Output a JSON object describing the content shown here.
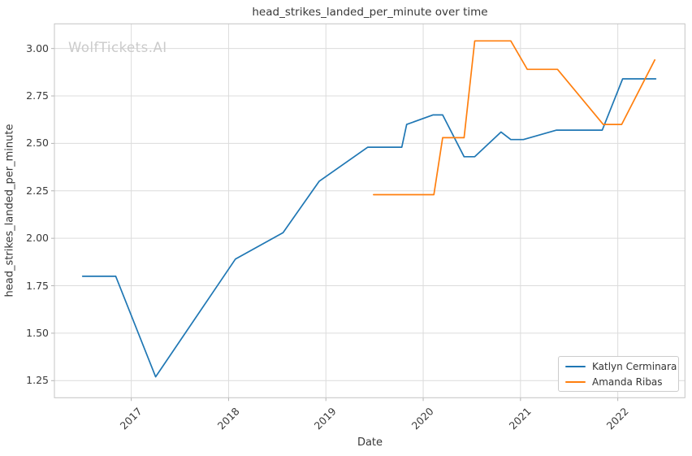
{
  "figure": {
    "title": "head_strikes_landed_per_minute over time",
    "watermark": "WolfTickets.AI",
    "xlabel": "Date",
    "ylabel": "head_strikes_landed_per_minute"
  },
  "legend": {
    "position": "lower right",
    "items": [
      {
        "label": "Katlyn Cerminara",
        "color": "#1f77b4"
      },
      {
        "label": "Amanda Ribas",
        "color": "#ff7f0e"
      }
    ]
  },
  "colors": {
    "grid": "#dcdcdc",
    "spine": "#c4c4c4",
    "tick_mark": "#b3b3b3",
    "text": "#3a3a3a",
    "watermark": "#cbcbcb",
    "background": "#ffffff",
    "series_blue": "#1f77b4",
    "series_orange": "#ff7f0e"
  },
  "chart_data": {
    "type": "line",
    "title": "head_strikes_landed_per_minute over time",
    "xlabel": "Date",
    "ylabel": "head_strikes_landed_per_minute",
    "grid": true,
    "legend_position": "lower right",
    "xlim": [
      2016.21,
      2022.69
    ],
    "ylim": [
      1.16,
      3.13
    ],
    "x_tick_values": [
      2017,
      2018,
      2019,
      2020,
      2021,
      2022
    ],
    "x_tick_labels": [
      "2017",
      "2018",
      "2019",
      "2020",
      "2021",
      "2022"
    ],
    "y_tick_values": [
      1.25,
      1.5,
      1.75,
      2.0,
      2.25,
      2.5,
      2.75,
      3.0
    ],
    "y_tick_labels": [
      "1.25",
      "1.50",
      "1.75",
      "2.00",
      "2.25",
      "2.50",
      "2.75",
      "3.00"
    ],
    "x_units": "decimal year",
    "series": [
      {
        "name": "Katlyn Cerminara",
        "color": "#1f77b4",
        "points": [
          [
            2016.5,
            1.8
          ],
          [
            2016.84,
            1.8
          ],
          [
            2017.25,
            1.27
          ],
          [
            2018.07,
            1.89
          ],
          [
            2018.56,
            2.03
          ],
          [
            2018.93,
            2.3
          ],
          [
            2019.43,
            2.48
          ],
          [
            2019.78,
            2.48
          ],
          [
            2019.83,
            2.6
          ],
          [
            2020.1,
            2.65
          ],
          [
            2020.2,
            2.65
          ],
          [
            2020.42,
            2.43
          ],
          [
            2020.53,
            2.43
          ],
          [
            2020.8,
            2.56
          ],
          [
            2020.9,
            2.52
          ],
          [
            2021.03,
            2.52
          ],
          [
            2021.37,
            2.57
          ],
          [
            2021.84,
            2.57
          ],
          [
            2022.05,
            2.84
          ],
          [
            2022.39,
            2.84
          ]
        ]
      },
      {
        "name": "Amanda Ribas",
        "color": "#ff7f0e",
        "points": [
          [
            2019.49,
            2.23
          ],
          [
            2020.11,
            2.23
          ],
          [
            2020.2,
            2.53
          ],
          [
            2020.42,
            2.53
          ],
          [
            2020.53,
            3.04
          ],
          [
            2020.9,
            3.04
          ],
          [
            2021.07,
            2.89
          ],
          [
            2021.38,
            2.89
          ],
          [
            2021.85,
            2.6
          ],
          [
            2022.04,
            2.6
          ],
          [
            2022.38,
            2.94
          ]
        ]
      }
    ]
  }
}
